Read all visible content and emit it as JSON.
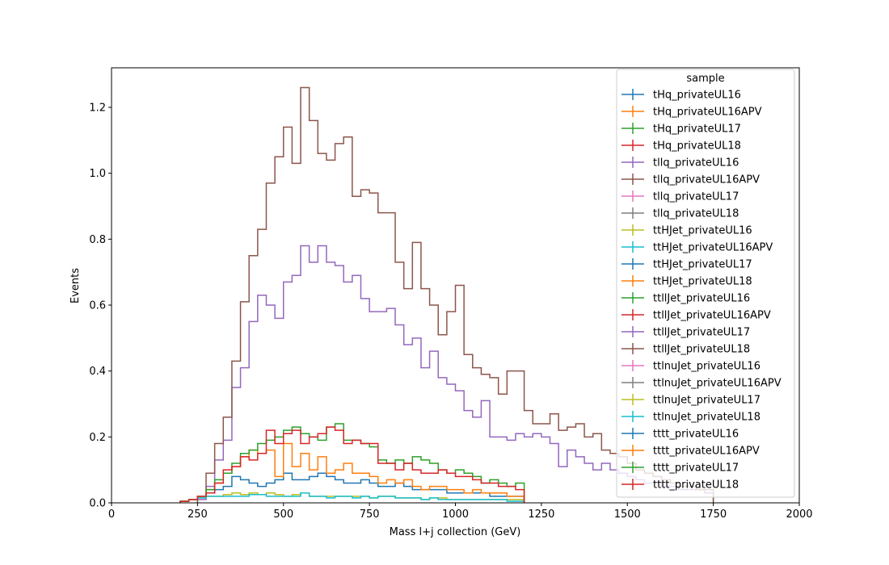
{
  "chart_data": {
    "type": "histogram-step",
    "xlabel": "Mass l+j collection (GeV)",
    "ylabel": "Events",
    "xlim": [
      0,
      2000
    ],
    "ylim": [
      0,
      1.32
    ],
    "x_ticks": [
      0,
      250,
      500,
      750,
      1000,
      1250,
      1500,
      1750,
      2000
    ],
    "y_ticks": [
      0.0,
      0.2,
      0.4,
      0.6,
      0.8,
      1.0,
      1.2
    ],
    "grid": false,
    "legend_title": "sample",
    "legend_position": "top-right",
    "bin_width": 25,
    "series": [
      {
        "name": "tHq_privateUL16",
        "color": "#1f77b4",
        "bins_from": 250,
        "values": []
      },
      {
        "name": "tHq_privateUL16APV",
        "color": "#ff7f0e",
        "bins_from": 250,
        "values": []
      },
      {
        "name": "tHq_privateUL17",
        "color": "#2ca02c",
        "bins_from": 250,
        "values": []
      },
      {
        "name": "tHq_privateUL18",
        "color": "#d62728",
        "bins_from": 250,
        "values": []
      },
      {
        "name": "tllq_privateUL16",
        "color": "#9467bd",
        "bins_from": 250,
        "values": [
          0.01,
          0.05,
          0.13,
          0.19,
          0.35,
          0.41,
          0.55,
          0.63,
          0.6,
          0.56,
          0.67,
          0.69,
          0.78,
          0.73,
          0.78,
          0.73,
          0.72,
          0.67,
          0.69,
          0.62,
          0.58,
          0.58,
          0.59,
          0.54,
          0.48,
          0.5,
          0.41,
          0.46,
          0.38,
          0.36,
          0.34,
          0.28,
          0.26,
          0.31,
          0.2,
          0.2,
          0.19,
          0.21,
          0.2,
          0.21,
          0.2,
          0.18,
          0.11,
          0.16,
          0.14,
          0.12,
          0.1,
          0.12,
          0.1,
          0.09,
          0.08,
          0.07,
          0.06,
          0.06,
          0.05,
          0.05,
          0.04,
          0.04,
          0.04,
          0.03
        ]
      },
      {
        "name": "tllq_privateUL16APV",
        "color": "#8c564b",
        "bins_from": 250,
        "values": [
          0.02,
          0.09,
          0.18,
          0.26,
          0.43,
          0.61,
          0.75,
          0.83,
          0.97,
          1.05,
          1.14,
          1.03,
          1.26,
          1.16,
          1.06,
          1.04,
          1.09,
          1.11,
          0.93,
          0.95,
          0.94,
          0.88,
          0.88,
          0.73,
          0.65,
          0.79,
          0.65,
          0.6,
          0.51,
          0.58,
          0.66,
          0.45,
          0.41,
          0.39,
          0.38,
          0.33,
          0.4,
          0.4,
          0.28,
          0.24,
          0.24,
          0.27,
          0.22,
          0.23,
          0.24,
          0.2,
          0.21,
          0.16,
          0.15,
          0.14,
          0.12,
          0.1,
          0.09,
          0.08,
          0.07,
          0.06,
          0.05,
          0.05,
          0.04,
          0.04
        ]
      },
      {
        "name": "tllq_privateUL17",
        "color": "#e377c2",
        "bins_from": 250,
        "values": []
      },
      {
        "name": "tllq_privateUL18",
        "color": "#7f7f7f",
        "bins_from": 250,
        "values": []
      },
      {
        "name": "ttHJet_privateUL16",
        "color": "#bcbd22",
        "bins_from": 200,
        "values": [
          0.005,
          0.01,
          0.015,
          0.02,
          0.02,
          0.025,
          0.03,
          0.025,
          0.03,
          0.025,
          0.03,
          0.025,
          0.02,
          0.025,
          0.03,
          0.02,
          0.02,
          0.02,
          0.02,
          0.02,
          0.02,
          0.02,
          0.015,
          0.02,
          0.02,
          0.015,
          0.015,
          0.015,
          0.01,
          0.015,
          0.015,
          0.01,
          0.01,
          0.01,
          0.01,
          0.01,
          0.01,
          0.01,
          0.01,
          0.01
        ]
      },
      {
        "name": "ttHJet_privateUL16APV",
        "color": "#17becf",
        "bins_from": 200,
        "values": [
          0.005,
          0.01,
          0.015,
          0.02,
          0.02,
          0.02,
          0.02,
          0.02,
          0.025,
          0.025,
          0.02,
          0.02,
          0.02,
          0.02,
          0.03,
          0.02,
          0.02,
          0.015,
          0.02,
          0.02,
          0.015,
          0.02,
          0.015,
          0.02,
          0.02,
          0.015,
          0.015,
          0.015,
          0.01,
          0.015,
          0.01,
          0.01,
          0.01,
          0.01,
          0.01,
          0.01,
          0.01,
          0.01,
          0.005,
          0.005
        ]
      },
      {
        "name": "ttHJet_privateUL17",
        "color": "#1f77b4",
        "bins_from": 200,
        "values": [
          0.005,
          0.01,
          0.02,
          0.03,
          0.04,
          0.05,
          0.08,
          0.07,
          0.06,
          0.05,
          0.06,
          0.07,
          0.09,
          0.07,
          0.07,
          0.08,
          0.09,
          0.08,
          0.07,
          0.06,
          0.06,
          0.07,
          0.06,
          0.05,
          0.05,
          0.06,
          0.05,
          0.04,
          0.04,
          0.04,
          0.04,
          0.03,
          0.03,
          0.03,
          0.03,
          0.03,
          0.02,
          0.02,
          0.02,
          0.02
        ]
      },
      {
        "name": "ttHJet_privateUL18",
        "color": "#ff7f0e",
        "bins_from": 200,
        "values": [
          0.005,
          0.01,
          0.02,
          0.04,
          0.06,
          0.09,
          0.11,
          0.14,
          0.16,
          0.15,
          0.16,
          0.08,
          0.18,
          0.11,
          0.15,
          0.1,
          0.14,
          0.09,
          0.1,
          0.12,
          0.09,
          0.09,
          0.08,
          0.06,
          0.07,
          0.06,
          0.07,
          0.05,
          0.04,
          0.05,
          0.05,
          0.04,
          0.04,
          0.03,
          0.04,
          0.03,
          0.03,
          0.03,
          0.02,
          0.02
        ]
      },
      {
        "name": "ttllJet_privateUL16",
        "color": "#2ca02c",
        "bins_from": 200,
        "values": [
          0.005,
          0.01,
          0.02,
          0.04,
          0.07,
          0.09,
          0.12,
          0.15,
          0.16,
          0.18,
          0.19,
          0.2,
          0.22,
          0.23,
          0.21,
          0.2,
          0.19,
          0.23,
          0.24,
          0.19,
          0.19,
          0.18,
          0.17,
          0.13,
          0.12,
          0.13,
          0.12,
          0.14,
          0.13,
          0.12,
          0.1,
          0.09,
          0.1,
          0.09,
          0.08,
          0.06,
          0.07,
          0.06,
          0.05,
          0.06
        ]
      },
      {
        "name": "ttllJet_privateUL16APV",
        "color": "#d62728",
        "bins_from": 200,
        "values": [
          0.005,
          0.01,
          0.02,
          0.03,
          0.06,
          0.1,
          0.11,
          0.14,
          0.13,
          0.15,
          0.22,
          0.18,
          0.21,
          0.22,
          0.18,
          0.2,
          0.21,
          0.23,
          0.22,
          0.18,
          0.19,
          0.18,
          0.18,
          0.12,
          0.12,
          0.1,
          0.12,
          0.1,
          0.09,
          0.09,
          0.1,
          0.09,
          0.08,
          0.08,
          0.07,
          0.06,
          0.06,
          0.05,
          0.05,
          0.04
        ]
      },
      {
        "name": "ttllJet_privateUL17",
        "color": "#9467bd",
        "bins_from": 250,
        "values": []
      },
      {
        "name": "ttllJet_privateUL18",
        "color": "#8c564b",
        "bins_from": 250,
        "values": []
      },
      {
        "name": "ttlnuJet_privateUL16",
        "color": "#e377c2",
        "bins_from": 250,
        "values": []
      },
      {
        "name": "ttlnuJet_privateUL16APV",
        "color": "#7f7f7f",
        "bins_from": 250,
        "values": []
      },
      {
        "name": "ttlnuJet_privateUL17",
        "color": "#bcbd22",
        "bins_from": 250,
        "values": []
      },
      {
        "name": "ttlnuJet_privateUL18",
        "color": "#17becf",
        "bins_from": 250,
        "values": []
      },
      {
        "name": "tttt_privateUL16",
        "color": "#1f77b4",
        "bins_from": 250,
        "values": []
      },
      {
        "name": "tttt_privateUL16APV",
        "color": "#ff7f0e",
        "bins_from": 250,
        "values": []
      },
      {
        "name": "tttt_privateUL17",
        "color": "#2ca02c",
        "bins_from": 250,
        "values": []
      },
      {
        "name": "tttt_privateUL18",
        "color": "#d62728",
        "bins_from": 250,
        "values": []
      }
    ]
  }
}
